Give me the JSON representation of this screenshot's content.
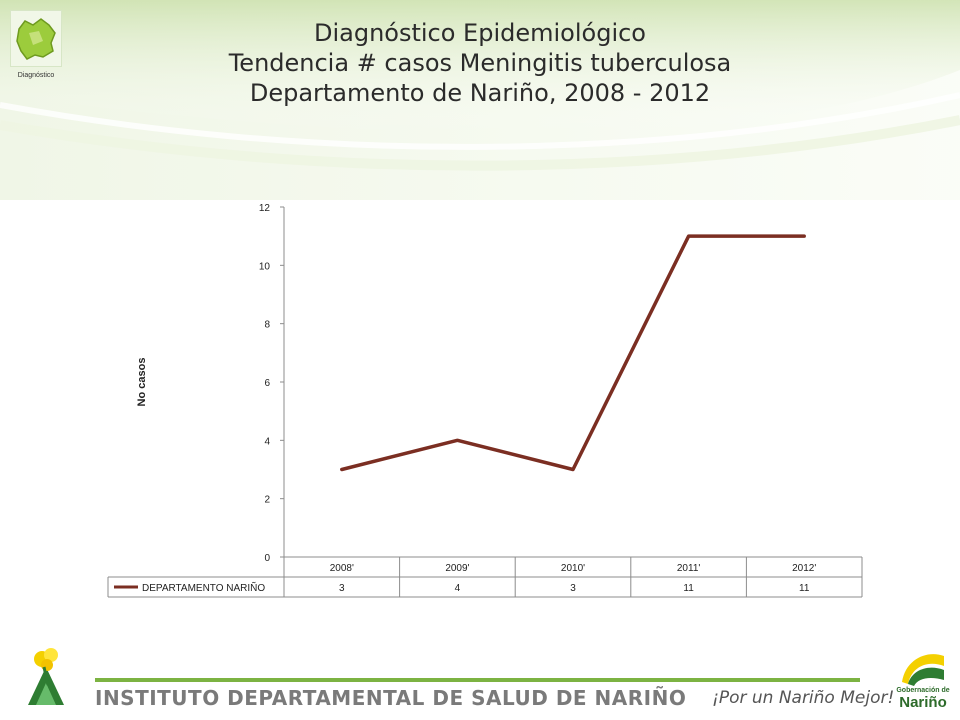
{
  "header": {
    "logo_caption": "Diagnóstico",
    "title_line1": "Diagnóstico Epidemiológico",
    "title_line2": "Tendencia # casos Meningitis tuberculosa",
    "title_line3": "Departamento de Nariño,  2008 - 2012"
  },
  "chart_data": {
    "type": "line",
    "categories": [
      "2008'",
      "2009'",
      "2010'",
      "2011'",
      "2012'"
    ],
    "series": [
      {
        "name": "DEPARTAMENTO NARIÑO",
        "values": [
          3,
          4,
          3,
          11,
          11
        ]
      }
    ],
    "xlabel": "",
    "ylabel": "No casos",
    "ylim": [
      0,
      12
    ],
    "yticks": [
      0,
      2,
      4,
      6,
      8,
      10,
      12
    ],
    "grid": false,
    "data_table": true,
    "line_color": "#7b2e22"
  },
  "footer": {
    "institute": "INSTITUTO DEPARTAMENTAL DE SALUD DE NARIÑO",
    "slogan": "¡Por un Nariño Mejor!",
    "gob_small": "Gobernación de",
    "gob_big": "Nariño"
  },
  "colors": {
    "accent_green": "#7cb342",
    "line": "#7b2e22"
  }
}
